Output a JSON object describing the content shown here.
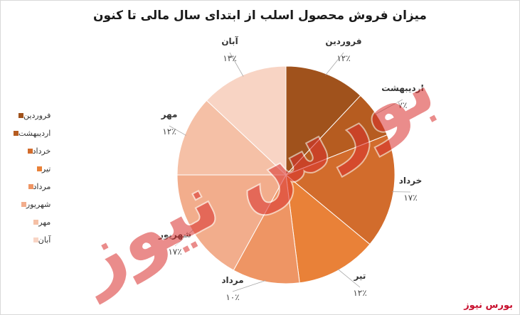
{
  "chart_data": {
    "type": "pie",
    "title": "میزان فروش محصول اسلب از ابتدای سال مالی تا کنون",
    "categories": [
      "فروردین",
      "اردیبهشت",
      "خرداد",
      "تیر",
      "مرداد",
      "شهریور",
      "مهر",
      "آبان"
    ],
    "values": [
      12,
      7,
      17,
      12,
      10,
      17,
      12,
      13
    ],
    "value_labels": [
      "۱۲٪",
      "۷٪",
      "۱۷٪",
      "۱۲٪",
      "۱۰٪",
      "۱۷٪",
      "۱۲٪",
      "۱۳٪"
    ],
    "colors": [
      "#a0521c",
      "#b65c20",
      "#d26c2c",
      "#e98138",
      "#ee9564",
      "#f2ad8c",
      "#f5c0a6",
      "#f8d4c4"
    ],
    "legend_position": "left"
  },
  "watermark": {
    "overlay_text": "بورس نیوز",
    "corner_text": "بورس نیوز"
  }
}
